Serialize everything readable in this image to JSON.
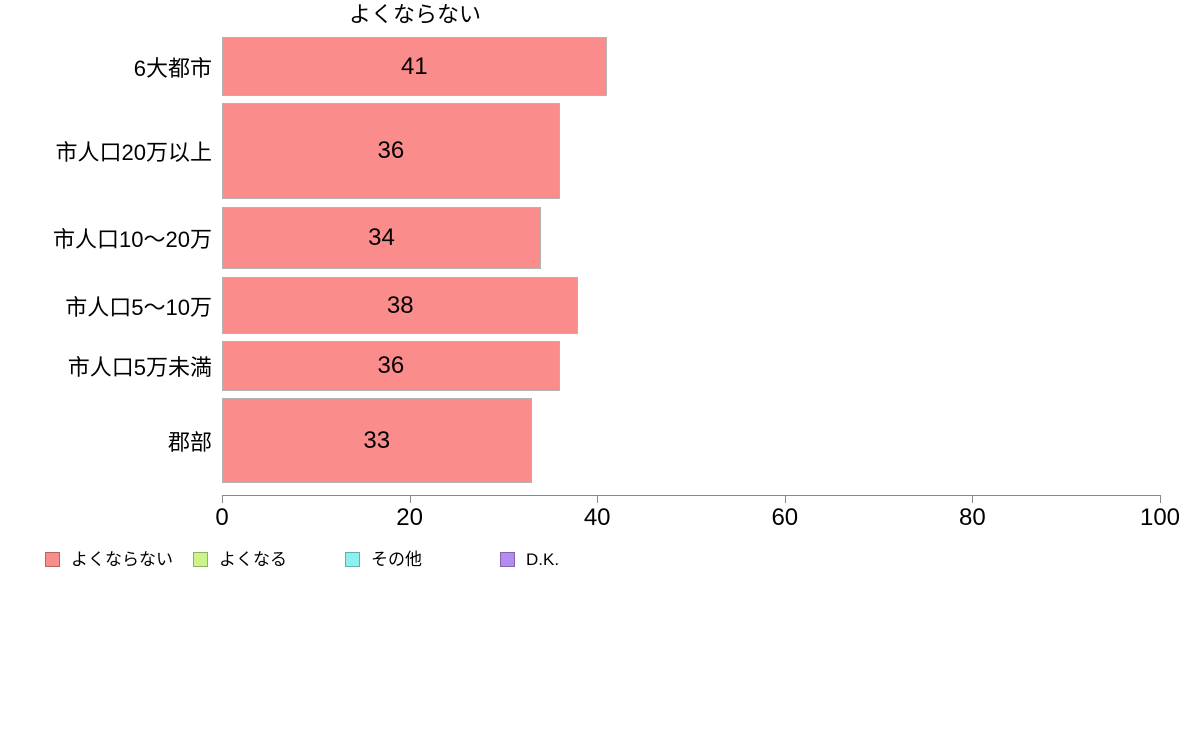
{
  "chart_data": {
    "type": "bar",
    "orientation": "horizontal",
    "title": "よくならない",
    "categories": [
      "6大都市",
      "市人口20万以上",
      "市人口10〜20万",
      "市人口5〜10万",
      "市人口5万未満",
      "郡部"
    ],
    "values": [
      41,
      36,
      34,
      38,
      36,
      33
    ],
    "value_labels": [
      "41",
      "36",
      "34",
      "38",
      "36",
      "33"
    ],
    "xlabel": "",
    "ylabel": "",
    "xlim": [
      0,
      100
    ],
    "x_ticks": [
      0,
      20,
      40,
      60,
      80,
      100
    ],
    "grid": false,
    "bar_color": "#FA8C8C",
    "bar_border_color": "#b3b3b3",
    "axis_color": "#888888",
    "legend_position": "bottom-left",
    "legend": [
      {
        "label": "よくならない",
        "color": "#FA8C8C"
      },
      {
        "label": "よくなる",
        "color": "#CCF38C"
      },
      {
        "label": "その他",
        "color": "#8CF0F0"
      },
      {
        "label": "D.K.",
        "color": "#B48CF0"
      }
    ]
  }
}
